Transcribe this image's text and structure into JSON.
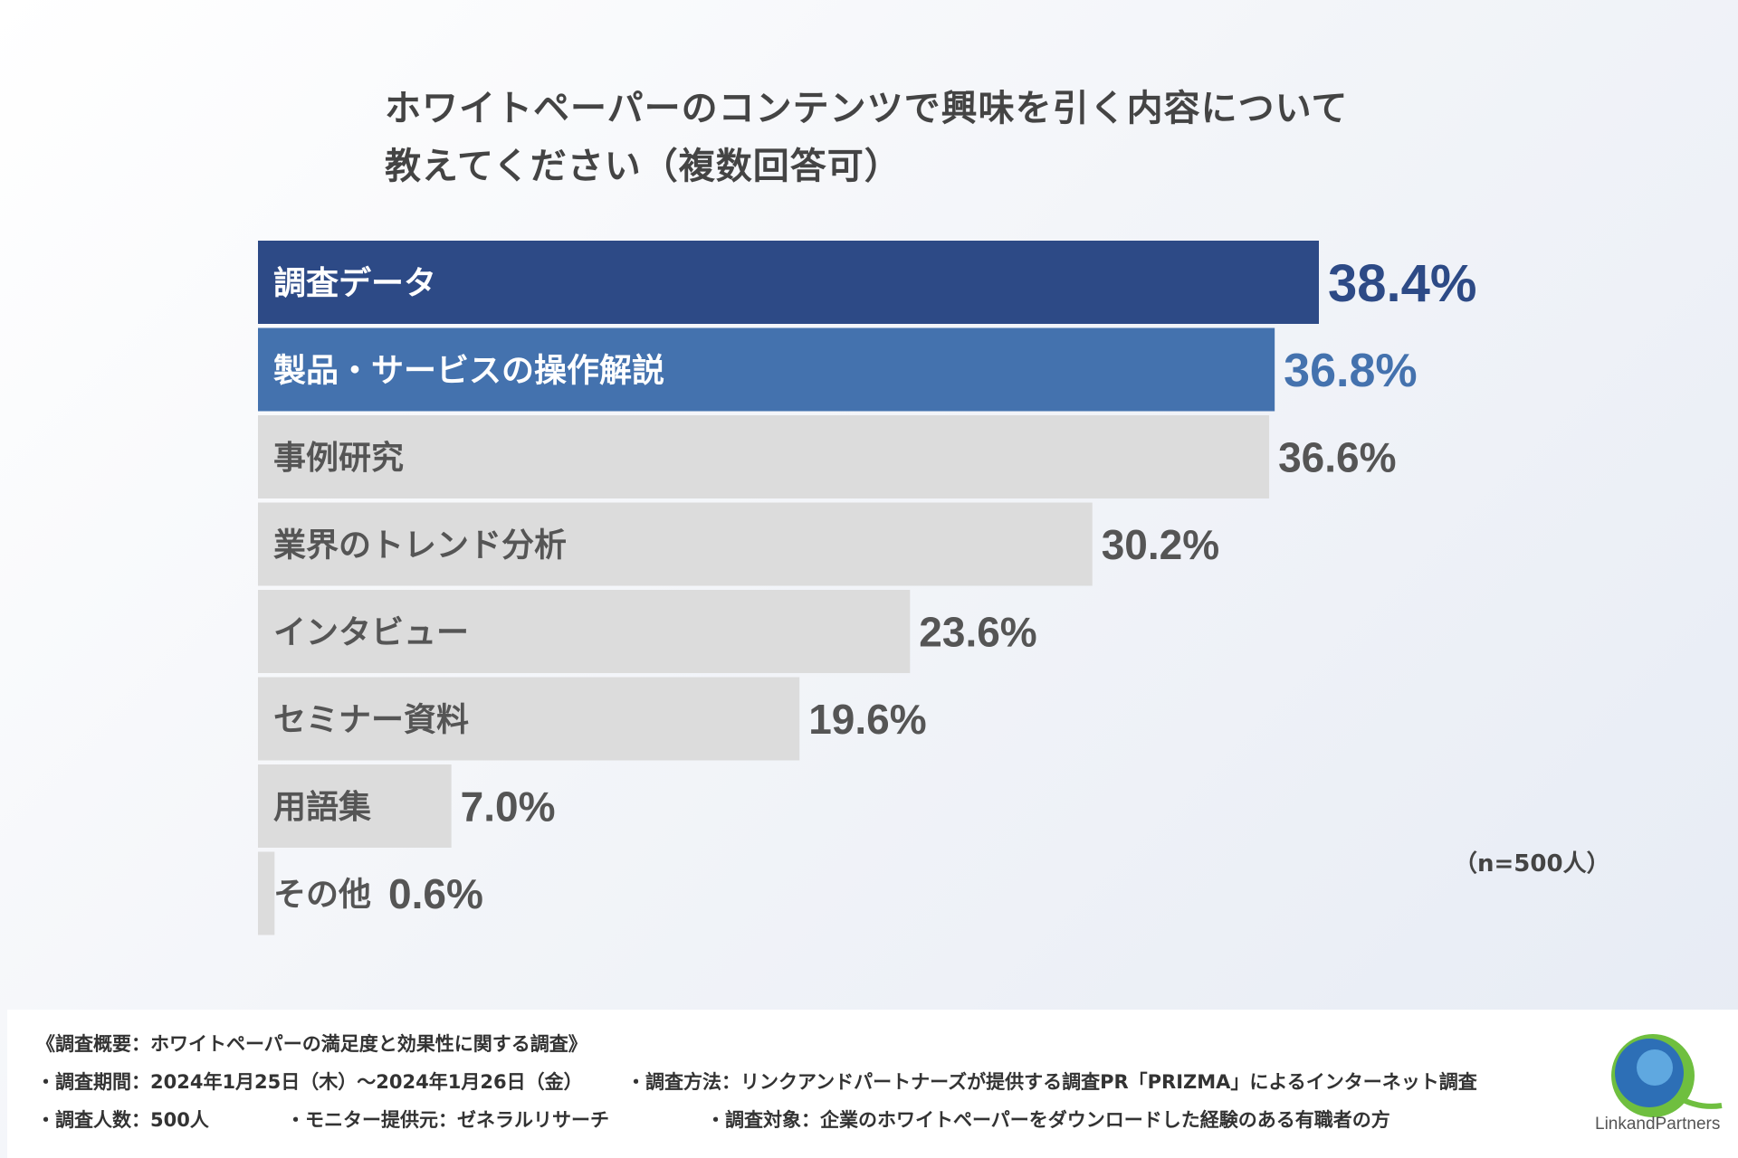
{
  "title_line1": "ホワイトペーパーのコンテンツで興味を引く内容について",
  "title_line2": "教えてください（複数回答可）",
  "n_note": "（n=500人）",
  "chart_data": {
    "type": "bar",
    "orientation": "horizontal",
    "categories": [
      "調査データ",
      "製品・サービスの操作解説",
      "事例研究",
      "業界のトレンド分析",
      "インタビュー",
      "セミナー資料",
      "用語集",
      "その他"
    ],
    "values": [
      38.4,
      36.8,
      36.6,
      30.2,
      23.6,
      19.6,
      7.0,
      0.6
    ],
    "value_labels": [
      "38.4%",
      "36.8%",
      "36.6%",
      "30.2%",
      "23.6%",
      "19.6%",
      "7.0%",
      "0.6%"
    ],
    "bar_colors": [
      "#2d4a86",
      "#4472ae",
      "#dcdcdc",
      "#dcdcdc",
      "#dcdcdc",
      "#dcdcdc",
      "#dcdcdc",
      "#dcdcdc"
    ],
    "label_colors": [
      "#ffffff",
      "#ffffff",
      "#555555",
      "#555555",
      "#555555",
      "#555555",
      "#555555",
      "#555555"
    ],
    "value_colors": [
      "#2d4a86",
      "#4472ae",
      "#555555",
      "#555555",
      "#555555",
      "#555555",
      "#555555",
      "#555555"
    ],
    "xlim": [
      0,
      38.4
    ]
  },
  "footer": {
    "line1": "《調査概要：ホワイトペーパーの満足度と効果性に関する調査》",
    "line2a": "・調査期間：2024年1月25日（木）〜2024年1月26日（金）",
    "line2b": "・調査方法：リンクアンドパートナーズが提供する調査PR「PRIZMA」によるインターネット調査",
    "line3a": "・調査人数：500人",
    "line3b": "・モニター提供元：ゼネラルリサーチ",
    "line3c": "・調査対象：企業のホワイトペーパーをダウンロードした経験のある有職者の方"
  },
  "logo": {
    "text": "LinkandPartners",
    "colors": [
      "#2d6fb6",
      "#6fbf3f"
    ]
  }
}
